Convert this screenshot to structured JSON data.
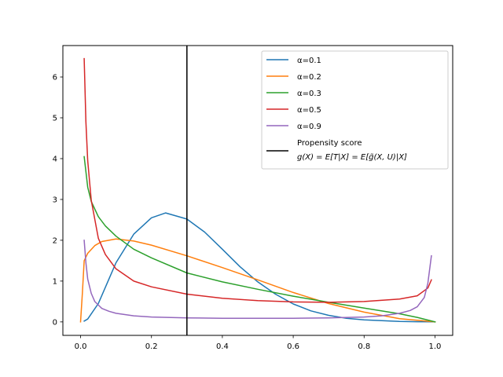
{
  "chart_data": {
    "type": "line",
    "title": "",
    "xlabel": "",
    "ylabel": "",
    "xlim": [
      -0.05,
      1.05
    ],
    "ylim": [
      -0.33,
      6.77
    ],
    "xticks": [
      0.0,
      0.2,
      0.4,
      0.6,
      0.8,
      1.0
    ],
    "xtick_labels": [
      "0.0",
      "0.2",
      "0.4",
      "0.6",
      "0.8",
      "1.0"
    ],
    "yticks": [
      0,
      1,
      2,
      3,
      4,
      5,
      6
    ],
    "ytick_labels": [
      "0",
      "1",
      "2",
      "3",
      "4",
      "5",
      "6"
    ],
    "grid": false,
    "legend_position": "upper-right",
    "series": [
      {
        "name": "α=0.1",
        "color": "#1f77b4",
        "x": [
          0.01,
          0.02,
          0.05,
          0.08,
          0.1,
          0.15,
          0.2,
          0.24,
          0.3,
          0.35,
          0.4,
          0.45,
          0.5,
          0.55,
          0.6,
          0.65,
          0.7,
          0.75,
          0.8,
          0.85,
          0.9,
          0.95,
          1.0
        ],
        "y": [
          0.02,
          0.07,
          0.45,
          1.05,
          1.45,
          2.15,
          2.55,
          2.67,
          2.52,
          2.2,
          1.78,
          1.35,
          0.98,
          0.68,
          0.44,
          0.27,
          0.16,
          0.09,
          0.05,
          0.03,
          0.01,
          0.005,
          0.0
        ]
      },
      {
        "name": "α=0.2",
        "color": "#ff7f0e",
        "x": [
          0.0,
          0.005,
          0.01,
          0.02,
          0.04,
          0.06,
          0.1,
          0.15,
          0.2,
          0.3,
          0.4,
          0.5,
          0.6,
          0.7,
          0.8,
          0.9,
          0.95,
          1.0
        ],
        "y": [
          0.0,
          0.7,
          1.5,
          1.68,
          1.87,
          1.97,
          2.03,
          1.98,
          1.88,
          1.62,
          1.33,
          1.03,
          0.72,
          0.45,
          0.24,
          0.08,
          0.04,
          0.0
        ]
      },
      {
        "name": "α=0.3",
        "color": "#2ca02c",
        "x": [
          0.01,
          0.02,
          0.03,
          0.05,
          0.07,
          0.1,
          0.15,
          0.2,
          0.3,
          0.4,
          0.5,
          0.6,
          0.7,
          0.8,
          0.9,
          0.95,
          1.0
        ],
        "y": [
          4.05,
          3.3,
          2.95,
          2.58,
          2.35,
          2.1,
          1.78,
          1.57,
          1.2,
          0.98,
          0.8,
          0.63,
          0.48,
          0.34,
          0.2,
          0.11,
          0.0
        ]
      },
      {
        "name": "α=0.5",
        "color": "#d62728",
        "x": [
          0.01,
          0.015,
          0.02,
          0.03,
          0.05,
          0.07,
          0.1,
          0.15,
          0.2,
          0.3,
          0.4,
          0.5,
          0.6,
          0.7,
          0.8,
          0.9,
          0.95,
          0.98,
          0.99
        ],
        "y": [
          6.45,
          4.9,
          3.95,
          2.98,
          2.05,
          1.65,
          1.3,
          1.0,
          0.86,
          0.68,
          0.58,
          0.52,
          0.49,
          0.48,
          0.5,
          0.56,
          0.64,
          0.83,
          1.03
        ]
      },
      {
        "name": "α=0.9",
        "color": "#9467bd",
        "x": [
          0.01,
          0.015,
          0.02,
          0.03,
          0.04,
          0.06,
          0.08,
          0.1,
          0.15,
          0.2,
          0.3,
          0.4,
          0.5,
          0.6,
          0.7,
          0.8,
          0.85,
          0.9,
          0.93,
          0.95,
          0.97,
          0.98,
          0.99
        ],
        "y": [
          2.0,
          1.45,
          1.05,
          0.7,
          0.5,
          0.33,
          0.26,
          0.21,
          0.15,
          0.12,
          0.1,
          0.09,
          0.09,
          0.09,
          0.1,
          0.12,
          0.15,
          0.21,
          0.28,
          0.37,
          0.6,
          0.95,
          1.62
        ]
      }
    ],
    "vline": {
      "x": 0.3,
      "color": "#000000",
      "label_line1": "Propensity score",
      "label_line2": "g(X) = E[T|X] = E[g̃(X, U)|X]"
    }
  }
}
